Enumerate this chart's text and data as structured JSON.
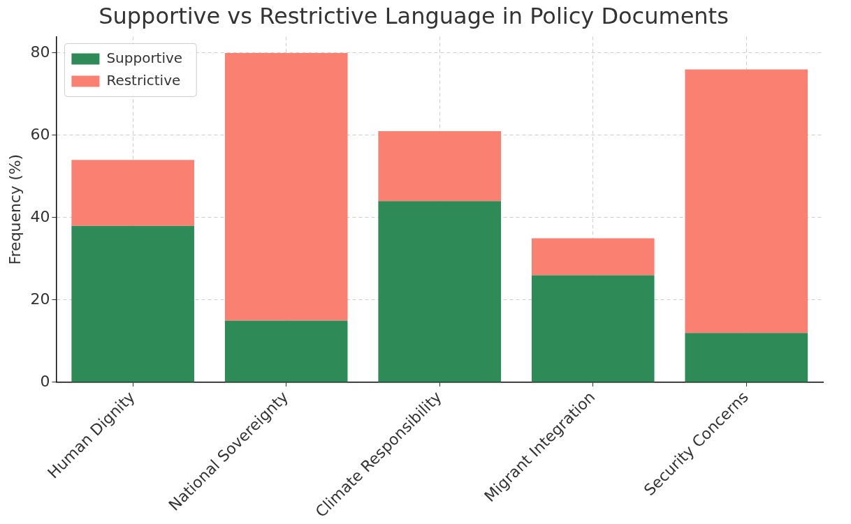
{
  "chart_data": {
    "type": "bar",
    "title": "Supportive vs Restrictive Language in Policy Documents",
    "ylabel": "Frequency (%)",
    "categories": [
      "Human Dignity",
      "National Sovereignty",
      "Climate Responsibility",
      "Migrant Integration",
      "Security Concerns"
    ],
    "series": [
      {
        "name": "Supportive",
        "color": "#2e8b57",
        "values": [
          38,
          15,
          44,
          26,
          12
        ]
      },
      {
        "name": "Restrictive",
        "color": "#fa8072",
        "values": [
          16,
          65,
          17,
          9,
          64
        ]
      }
    ],
    "stacked": true,
    "ylim": [
      0,
      84
    ],
    "yticks": [
      0,
      20,
      40,
      60,
      80
    ],
    "grid": true,
    "legend": "top left"
  }
}
